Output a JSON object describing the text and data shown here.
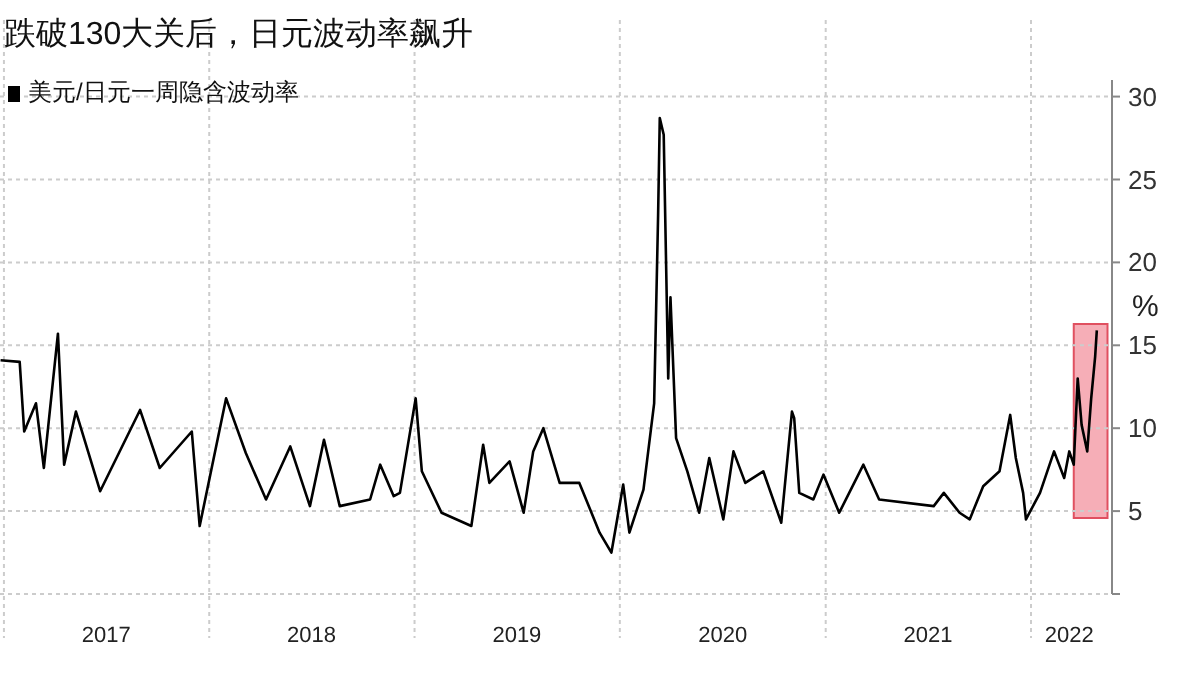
{
  "chart_data": {
    "type": "line",
    "title": "跌破130大关后，日元波动率飙升",
    "x": [
      "2016-12-26",
      "2017-01-29",
      "2017-02-06",
      "2017-02-27",
      "2017-03-13",
      "2017-04-07",
      "2017-04-18",
      "2017-05-09",
      "2017-06-21",
      "2017-08-31",
      "2017-10-05",
      "2017-12-01",
      "2017-12-15",
      "2018-01-31",
      "2018-03-07",
      "2018-04-12",
      "2018-05-25",
      "2018-06-29",
      "2018-07-24",
      "2018-08-21",
      "2018-10-14",
      "2018-11-01",
      "2018-11-25",
      "2018-12-06",
      "2019-01-03",
      "2019-01-14",
      "2019-02-18",
      "2019-04-12",
      "2019-05-03",
      "2019-05-14",
      "2019-06-19",
      "2019-07-14",
      "2019-07-31",
      "2019-08-18",
      "2019-09-16",
      "2019-10-21",
      "2019-11-26",
      "2019-12-17",
      "2020-01-07",
      "2020-01-18",
      "2020-02-12",
      "2020-03-02",
      "2020-03-09",
      "2020-03-12",
      "2020-03-19",
      "2020-03-27",
      "2020-03-31",
      "2020-04-10",
      "2020-04-30",
      "2020-05-21",
      "2020-06-08",
      "2020-07-03",
      "2020-07-21",
      "2020-08-11",
      "2020-09-12",
      "2020-10-14",
      "2020-11-02",
      "2020-11-06",
      "2020-11-15",
      "2020-12-10",
      "2020-12-28",
      "2021-01-25",
      "2021-03-09",
      "2021-04-06",
      "2021-07-12",
      "2021-07-30",
      "2021-08-27",
      "2021-09-14",
      "2021-10-08",
      "2021-11-06",
      "2021-11-25",
      "2021-12-05",
      "2021-12-18",
      "2021-12-23",
      "2022-01-17",
      "2022-02-11",
      "2022-03-01",
      "2022-03-10",
      "2022-03-18",
      "2022-03-25",
      "2022-04-01",
      "2022-04-11",
      "2022-04-18",
      "2022-04-25",
      "2022-04-28"
    ],
    "series": [
      {
        "name": "美元/日元一周隐含波动率",
        "color": "#000000",
        "values": [
          14.1,
          14,
          9.8,
          11.5,
          7.6,
          15.7,
          7.8,
          11,
          6.2,
          11.1,
          7.6,
          9.8,
          4.1,
          11.8,
          8.5,
          5.7,
          8.9,
          5.3,
          9.3,
          5.3,
          5.7,
          7.8,
          5.9,
          6.1,
          11.8,
          7.4,
          4.9,
          4.1,
          9,
          6.7,
          8,
          4.9,
          8.6,
          10,
          6.7,
          6.7,
          3.7,
          2.5,
          6.6,
          3.7,
          6.3,
          11.5,
          22.8,
          28.7,
          27.7,
          13,
          17.9,
          9.4,
          7.4,
          4.9,
          8.2,
          4.5,
          8.6,
          6.7,
          7.4,
          4.3,
          11,
          10.6,
          6.1,
          5.7,
          7.2,
          4.9,
          7.8,
          5.7,
          5.3,
          6.1,
          4.9,
          4.5,
          6.5,
          7.4,
          10.8,
          8.2,
          6.1,
          4.5,
          6.1,
          8.6,
          7,
          8.6,
          7.8,
          13,
          10.2,
          8.6,
          11.8,
          14.3,
          15.9
        ]
      }
    ],
    "xlim": [
      "2016-12-25",
      "2022-05-25"
    ],
    "xticks": [
      {
        "value": "2017-01-01",
        "label": null
      },
      {
        "value": "2017-07-02",
        "label": "2017"
      },
      {
        "value": "2018-01-01",
        "label": null
      },
      {
        "value": "2018-07-02",
        "label": "2018"
      },
      {
        "value": "2019-01-01",
        "label": null
      },
      {
        "value": "2019-07-02",
        "label": "2019"
      },
      {
        "value": "2020-01-01",
        "label": null
      },
      {
        "value": "2020-07-02",
        "label": "2020"
      },
      {
        "value": "2021-01-01",
        "label": null
      },
      {
        "value": "2021-07-02",
        "label": "2021"
      },
      {
        "value": "2022-01-01",
        "label": null
      },
      {
        "value": "2022-03-10",
        "label": "2022"
      }
    ],
    "ylim": [
      0,
      31
    ],
    "yticks": [
      {
        "value": 0,
        "label": null
      },
      5,
      10,
      15,
      20,
      25,
      30
    ],
    "ylabel": "%",
    "grid": true,
    "legend": "top left",
    "line_style": "solid",
    "marker": "none",
    "bands": [
      {
        "axis": "x",
        "from": "2022-03-18",
        "to": "2022-05-17",
        "color": "#f4a0aa"
      }
    ]
  }
}
